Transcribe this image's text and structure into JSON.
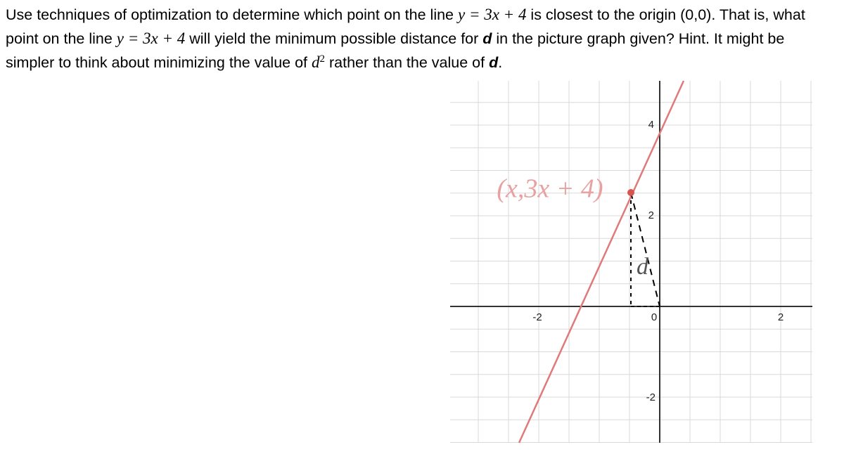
{
  "question": {
    "runs": [
      {
        "text": "Use techniques of optimization to determine which point on the line ",
        "style": "plain"
      },
      {
        "text": "y = 3x + 4",
        "style": "math"
      },
      {
        "text": " is closest to the origin (0,0). That is, what point on the line ",
        "style": "plain"
      },
      {
        "text": "y = 3x + 4",
        "style": "math"
      },
      {
        "text": " will yield the minimum possible distance for ",
        "style": "plain"
      },
      {
        "text": "d",
        "style": "bold-italic"
      },
      {
        "text": " in the picture graph given? Hint. It might be simpler to think about minimizing the value of ",
        "style": "plain"
      },
      {
        "text": "d",
        "style": "math"
      },
      {
        "text": "2",
        "style": "sup"
      },
      {
        "text": " rather than the value of ",
        "style": "plain"
      },
      {
        "text": "d",
        "style": "bold-italic"
      },
      {
        "text": ".",
        "style": "plain"
      }
    ]
  },
  "graph": {
    "y_tick_labels": [
      "4",
      "2",
      "-2"
    ],
    "x_tick_labels": [
      "-2",
      "0",
      "2"
    ],
    "point_label": "(x,3x + 4)",
    "distance_label": "d"
  }
}
